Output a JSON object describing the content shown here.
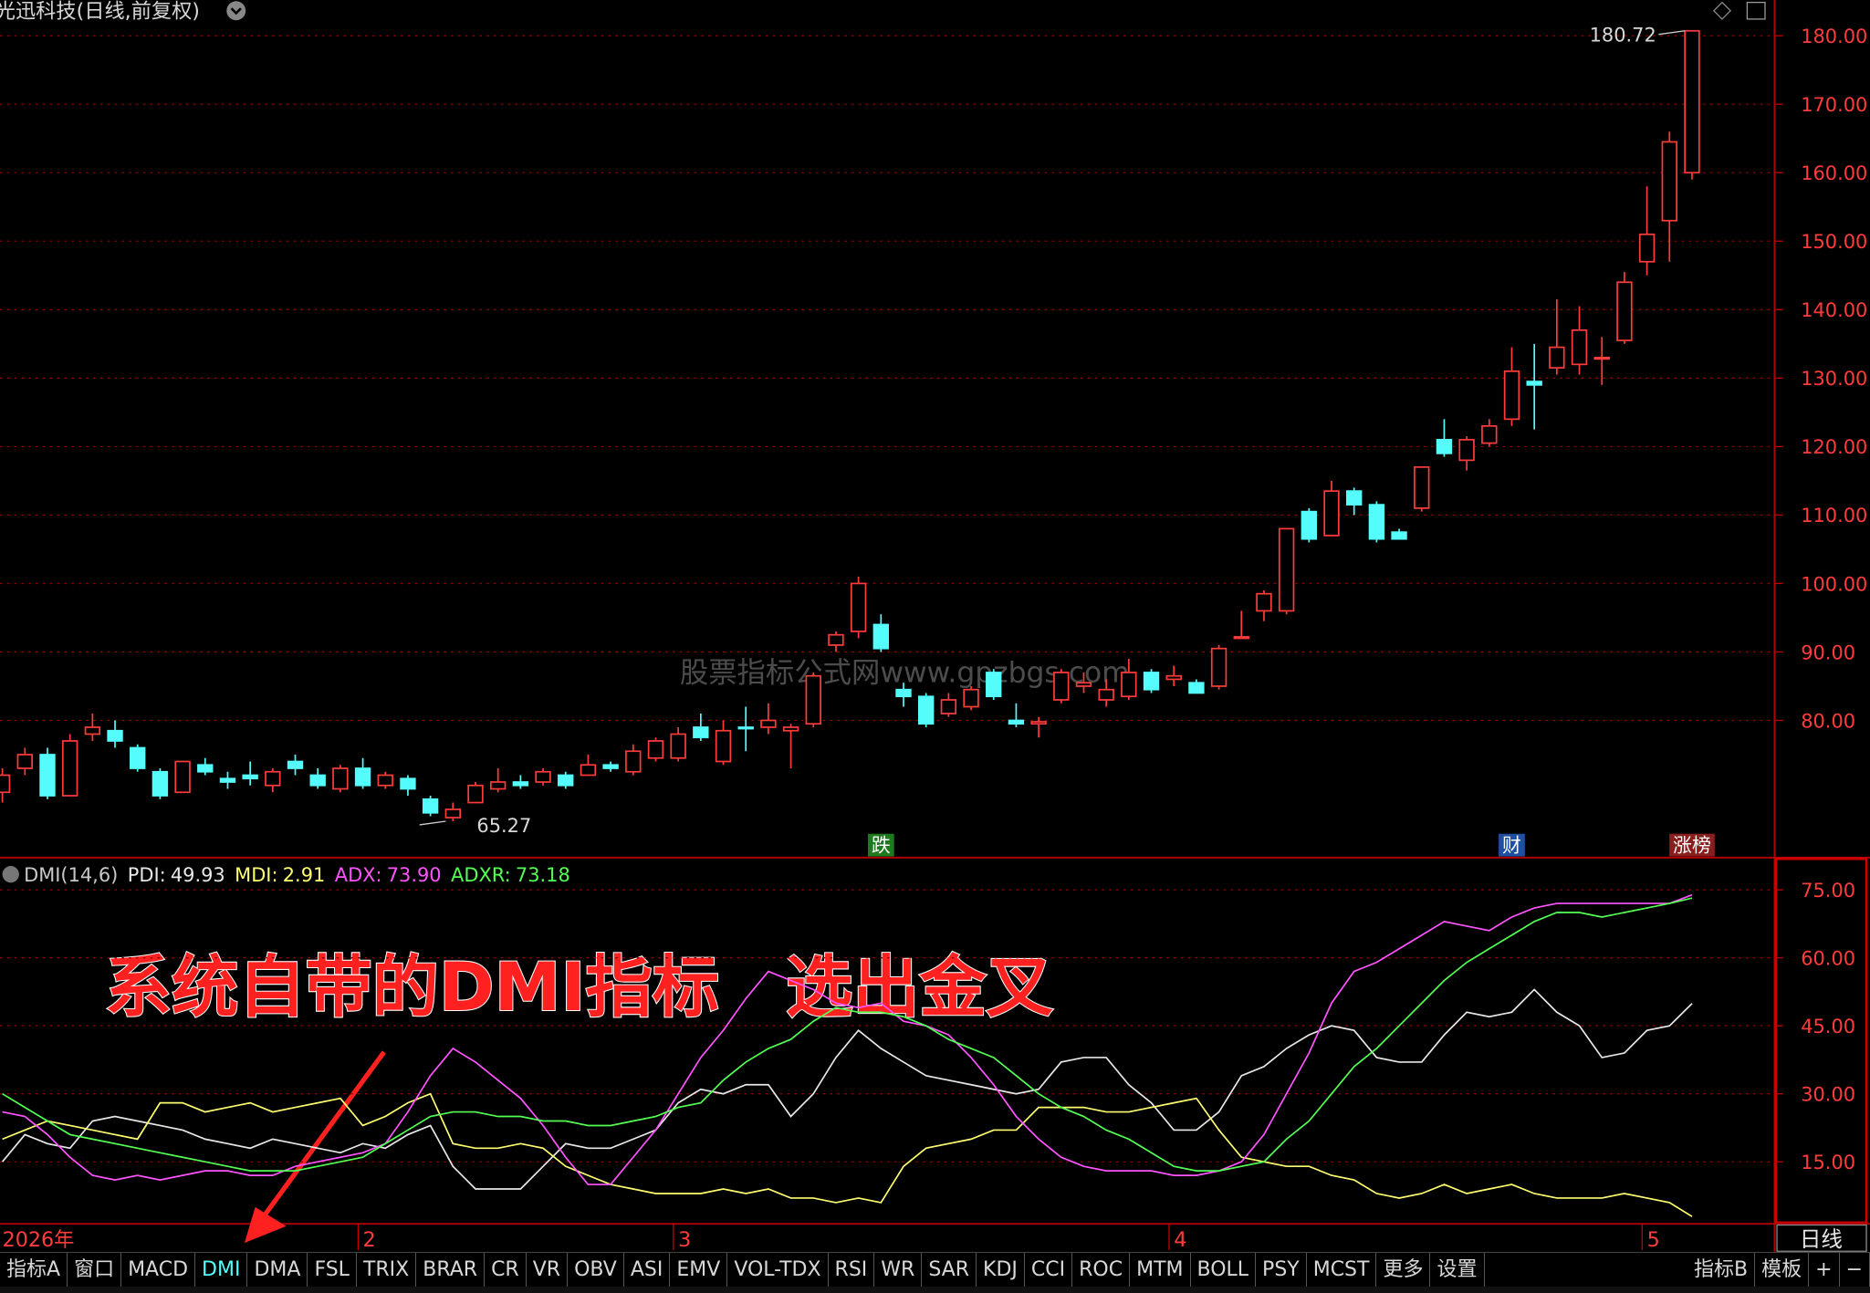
{
  "header": {
    "title": "光迅科技(日线,前复权)"
  },
  "chart_data": [
    {
      "type": "candlestick",
      "open": [
        69.5,
        73,
        75,
        69,
        78,
        78.5,
        76,
        72.5,
        69.5,
        73.5,
        71.5,
        72,
        70.5,
        74,
        72,
        70,
        73,
        70.5,
        71.5,
        68.5,
        65.8,
        68,
        70,
        71,
        71,
        72,
        72,
        73.5,
        72.5,
        74.5,
        74.5,
        79,
        74,
        79,
        79,
        78.5,
        79.5,
        91,
        93,
        94,
        84.5,
        83.5,
        81,
        82,
        87,
        80,
        79.5,
        83,
        85,
        83,
        83.5,
        87,
        86,
        85.5,
        85,
        92,
        96,
        96,
        110.5,
        107,
        113.5,
        111.5,
        107.5,
        111,
        121,
        118,
        120.5,
        124,
        129.5,
        131.5,
        132,
        132.9,
        135.5,
        147,
        153,
        160
      ],
      "high": [
        73,
        76,
        76,
        78,
        81,
        80,
        76.5,
        73,
        74,
        74.5,
        72.5,
        74,
        73,
        75,
        73,
        73.5,
        74.5,
        72.5,
        72,
        69,
        68,
        71,
        73,
        72,
        73,
        72.5,
        75,
        74,
        76.5,
        77.5,
        79,
        81,
        80,
        82,
        82.5,
        79.5,
        87,
        93,
        101,
        95.5,
        85.5,
        84,
        84,
        85,
        87.5,
        82.5,
        80.5,
        87.5,
        87,
        86,
        89,
        87.5,
        88,
        86,
        91,
        96,
        99,
        108,
        111,
        115,
        114,
        112,
        108,
        117,
        124,
        121.5,
        124,
        134.5,
        135,
        141.5,
        140.5,
        136,
        145.5,
        158,
        166,
        180.72
      ],
      "low": [
        68,
        72,
        68.5,
        69,
        77,
        76,
        72.5,
        68.5,
        69.5,
        72,
        70,
        70.5,
        69.5,
        72,
        70,
        69.5,
        70,
        70,
        69,
        66,
        65.27,
        68,
        69.5,
        70,
        70.5,
        70,
        72,
        72.5,
        72,
        74,
        74,
        77,
        73.5,
        75.5,
        78,
        73,
        79,
        90,
        92,
        90,
        82,
        79,
        80.5,
        81.5,
        83,
        79,
        77.5,
        82.5,
        84,
        82,
        83,
        84,
        85,
        84,
        84.5,
        92,
        94.5,
        95.5,
        106,
        107,
        110,
        106,
        106.5,
        110.5,
        118.5,
        116.5,
        120,
        123,
        122.5,
        130.5,
        130.5,
        129,
        135,
        145,
        147,
        159
      ],
      "close": [
        72,
        75,
        69,
        77,
        79,
        77,
        73,
        69,
        74,
        72.5,
        71,
        71.5,
        72.5,
        73,
        70.5,
        73,
        70.5,
        72,
        70,
        66.5,
        67,
        70.5,
        71,
        70.5,
        72.5,
        70.5,
        73.5,
        73,
        75.5,
        77,
        78,
        77.5,
        78.5,
        78.8,
        80,
        79,
        86.5,
        92.5,
        100,
        90.5,
        83.5,
        79.5,
        83,
        84.5,
        83.5,
        79.5,
        79.8,
        87,
        85.5,
        84.5,
        87,
        84.5,
        86.5,
        84,
        90.5,
        92.2,
        98.5,
        108,
        106.5,
        113.5,
        111.5,
        106.5,
        106.5,
        117,
        119,
        121,
        123,
        131,
        129,
        134.5,
        137,
        133,
        144,
        151,
        164.5,
        180.72
      ],
      "up_color": "#ff3c3c",
      "down_color": "#54fcfc",
      "ylim": [
        60.13,
        182.61
      ],
      "yticks": [
        {
          "value": 80,
          "label": "80.00"
        },
        {
          "value": 90,
          "label": "90.00"
        },
        {
          "value": 100,
          "label": "100.00"
        },
        {
          "value": 110,
          "label": "110.00"
        },
        {
          "value": 120,
          "label": "120.00"
        },
        {
          "value": 130,
          "label": "130.00"
        },
        {
          "value": 140,
          "label": "140.00"
        },
        {
          "value": 150,
          "label": "150.00"
        },
        {
          "value": 160,
          "label": "160.00"
        },
        {
          "value": 170,
          "label": "170.00"
        },
        {
          "value": 180,
          "label": "180.00"
        }
      ],
      "grid": true,
      "annotations": [
        {
          "text": "180.72",
          "value": 180.72,
          "index": 75
        },
        {
          "text": "65.27",
          "value": 65.27,
          "index": 20
        }
      ],
      "markers": [
        {
          "text": "跌",
          "index": 39,
          "color": "#1e7a1e"
        },
        {
          "text": "财",
          "index": 67,
          "color": "#1e4fa0"
        },
        {
          "text": "涨榜",
          "index": 75,
          "color": "#8a1e1e"
        }
      ],
      "x_labels": [
        {
          "label": "2026年",
          "index": 0
        },
        {
          "label": "2",
          "index": 16
        },
        {
          "label": "3",
          "index": 30
        },
        {
          "label": "4",
          "index": 52
        },
        {
          "label": "5",
          "index": 73
        }
      ]
    },
    {
      "type": "line",
      "title": "DMI(14,6)",
      "ylim": [
        1.58,
        81.32
      ],
      "yticks": [
        {
          "value": 15,
          "label": "15.00"
        },
        {
          "value": 30,
          "label": "30.00"
        },
        {
          "value": 45,
          "label": "45.00"
        },
        {
          "value": 60,
          "label": "60.00"
        },
        {
          "value": 75,
          "label": "75.00"
        }
      ],
      "series": [
        {
          "name": "PDI:",
          "last_label": "49.93",
          "color": "#e8e8e8",
          "values": [
            15,
            21,
            19,
            18,
            24,
            25,
            24,
            23,
            22,
            20,
            19,
            18,
            20,
            19,
            18,
            17,
            19,
            18,
            21,
            23,
            14,
            9,
            9,
            9,
            14,
            19,
            18,
            18,
            20,
            22,
            28,
            31,
            30,
            32,
            32,
            25,
            30,
            38,
            44,
            40,
            37,
            34,
            33,
            32,
            31,
            30,
            31,
            37,
            38,
            38,
            32,
            28,
            22,
            22,
            26,
            34,
            36,
            40,
            43,
            45,
            44,
            38,
            37,
            37,
            43,
            48,
            47,
            48,
            53,
            48,
            45,
            38,
            39,
            44,
            45,
            49.93
          ]
        },
        {
          "name": "MDI:",
          "last_label": "2.91",
          "color": "#ffff70",
          "values": [
            20,
            22,
            24,
            23,
            22,
            21,
            20,
            28,
            28,
            26,
            27,
            28,
            26,
            27,
            28,
            29,
            23,
            25,
            28,
            30,
            19,
            18,
            18,
            19,
            18,
            14,
            12,
            10,
            9,
            8,
            8,
            8,
            9,
            8,
            9,
            7,
            7,
            6,
            7,
            6,
            14,
            18,
            19,
            20,
            22,
            22,
            27,
            27,
            27,
            26,
            26,
            27,
            28,
            29,
            22,
            16,
            15,
            14,
            14,
            12,
            11,
            8,
            7,
            8,
            10,
            8,
            9,
            10,
            8,
            7,
            7,
            7,
            8,
            7,
            6,
            2.91
          ]
        },
        {
          "name": "ADX:",
          "last_label": "73.90",
          "color": "#ff54ff",
          "values": [
            26,
            25,
            21,
            16,
            12,
            11,
            12,
            11,
            12,
            13,
            13,
            12,
            12,
            14,
            15,
            16,
            17,
            19,
            26,
            34,
            40,
            37,
            33,
            29,
            23,
            16,
            10,
            10,
            16,
            22,
            30,
            38,
            44,
            51,
            57,
            55,
            53,
            50,
            49,
            50,
            46,
            45,
            43,
            38,
            32,
            25,
            20,
            16,
            14,
            13,
            13,
            13,
            12,
            12,
            13,
            15,
            21,
            30,
            39,
            50,
            57,
            59,
            62,
            65,
            68,
            67,
            66,
            69,
            71,
            72,
            72,
            72,
            72,
            72,
            72,
            73.9
          ]
        },
        {
          "name": "ADXR:",
          "last_label": "73.18",
          "color": "#54ff54",
          "values": [
            30,
            27,
            24,
            21,
            20,
            19,
            18,
            17,
            16,
            15,
            14,
            13,
            13,
            13,
            14,
            15,
            16,
            19,
            22,
            25,
            26,
            26,
            25,
            25,
            24,
            24,
            23,
            23,
            24,
            25,
            27,
            28,
            33,
            37,
            40,
            42,
            46,
            49,
            48,
            48,
            47,
            45,
            42,
            40,
            38,
            34,
            30,
            27,
            25,
            22,
            20,
            17,
            14,
            13,
            13,
            14,
            15,
            20,
            24,
            30,
            36,
            40,
            45,
            50,
            55,
            59,
            62,
            65,
            68,
            70,
            70,
            69,
            70,
            71,
            72,
            73.18
          ]
        }
      ]
    }
  ],
  "watermark": "股票指标公式网www.gpzbgs.com",
  "caption": "系统自带的DMI指标　选出金叉",
  "period_label": "日线",
  "tabs": [
    "指标A",
    "窗口",
    "MACD",
    "DMI",
    "DMA",
    "FSL",
    "TRIX",
    "BRAR",
    "CR",
    "VR",
    "OBV",
    "ASI",
    "EMV",
    "VOL-TDX",
    "RSI",
    "WR",
    "SAR",
    "KDJ",
    "CCI",
    "ROC",
    "MTM",
    "BOLL",
    "PSY",
    "MCST",
    "更多",
    "设置",
    "指标B",
    "模板",
    "+",
    "−"
  ],
  "active_tab": 3
}
